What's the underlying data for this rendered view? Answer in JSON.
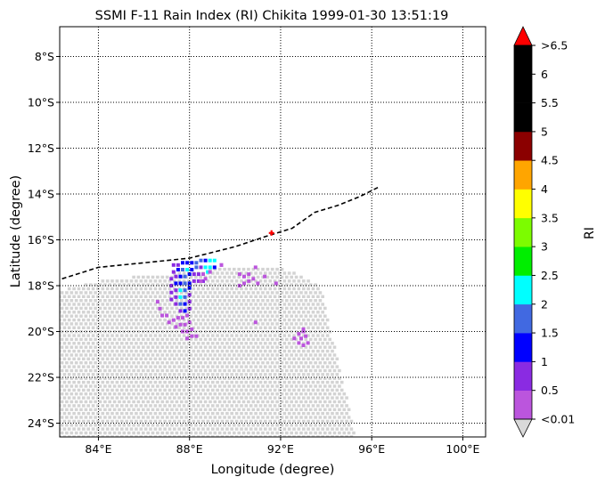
{
  "chart_data": {
    "type": "heatmap",
    "title": "SSMI F-11 Rain Index (RI) Chikita 1999-01-30 13:51:19",
    "xlabel": "Longitude (degree)",
    "ylabel": "Latitude (degree)",
    "xlim": [
      82.3,
      101.0
    ],
    "ylim": [
      -24.6,
      -6.7
    ],
    "x_ticks": [
      {
        "value": 84,
        "label": "84°E"
      },
      {
        "value": 88,
        "label": "88°E"
      },
      {
        "value": 92,
        "label": "92°E"
      },
      {
        "value": 96,
        "label": "96°E"
      },
      {
        "value": 100,
        "label": "100°E"
      }
    ],
    "y_ticks": [
      {
        "value": -8,
        "label": "8°S"
      },
      {
        "value": -10,
        "label": "10°S"
      },
      {
        "value": -12,
        "label": "12°S"
      },
      {
        "value": -14,
        "label": "14°S"
      },
      {
        "value": -16,
        "label": "16°S"
      },
      {
        "value": -18,
        "label": "18°S"
      },
      {
        "value": -20,
        "label": "20°S"
      },
      {
        "value": -22,
        "label": "22°S"
      },
      {
        "value": -24,
        "label": "24°S"
      }
    ],
    "grid": true,
    "grid_style": "dotted",
    "swath": {
      "color": "#d3d3d3",
      "description_points": [
        [
          82.3,
          -18.2
        ],
        [
          84.6,
          -17.7
        ],
        [
          87.0,
          -17.5
        ],
        [
          89.5,
          -17.2
        ],
        [
          92.5,
          -17.3
        ],
        [
          93.4,
          -17.8
        ],
        [
          93.8,
          -18.2
        ],
        [
          95.3,
          -24.6
        ],
        [
          82.3,
          -24.6
        ]
      ]
    },
    "track": {
      "style": "dashed",
      "color": "#000000",
      "points": [
        [
          82.4,
          -17.7
        ],
        [
          84.0,
          -17.2
        ],
        [
          86.0,
          -17.0
        ],
        [
          88.0,
          -16.8
        ],
        [
          90.0,
          -16.3
        ],
        [
          91.5,
          -15.8
        ],
        [
          92.5,
          -15.5
        ],
        [
          93.5,
          -14.8
        ],
        [
          94.5,
          -14.5
        ],
        [
          95.5,
          -14.1
        ],
        [
          96.3,
          -13.7
        ]
      ]
    },
    "storm_center": {
      "lon": 91.6,
      "lat": -15.7,
      "color": "#ff0000"
    },
    "rain_points": [
      {
        "lon": 87.3,
        "lat": -17.1,
        "ri": 0.5
      },
      {
        "lon": 87.5,
        "lat": -17.1,
        "ri": 0.75
      },
      {
        "lon": 87.7,
        "lat": -17.0,
        "ri": 1.25
      },
      {
        "lon": 87.9,
        "lat": -17.0,
        "ri": 1.25
      },
      {
        "lon": 88.1,
        "lat": -17.0,
        "ri": 1.25
      },
      {
        "lon": 88.3,
        "lat": -17.0,
        "ri": 1.75
      },
      {
        "lon": 88.5,
        "lat": -16.9,
        "ri": 1.75
      },
      {
        "lon": 88.7,
        "lat": -16.9,
        "ri": 1.25
      },
      {
        "lon": 88.9,
        "lat": -16.9,
        "ri": 2.25
      },
      {
        "lon": 89.1,
        "lat": -16.9,
        "ri": 2.25
      },
      {
        "lon": 87.3,
        "lat": -17.4,
        "ri": 0.75
      },
      {
        "lon": 87.5,
        "lat": -17.3,
        "ri": 1.25
      },
      {
        "lon": 87.7,
        "lat": -17.3,
        "ri": 1.75
      },
      {
        "lon": 87.9,
        "lat": -17.3,
        "ri": 2.25
      },
      {
        "lon": 88.1,
        "lat": -17.3,
        "ri": 1.25
      },
      {
        "lon": 88.3,
        "lat": -17.2,
        "ri": 1.75
      },
      {
        "lon": 88.5,
        "lat": -17.2,
        "ri": 0.75
      },
      {
        "lon": 88.7,
        "lat": -17.2,
        "ri": 2.25
      },
      {
        "lon": 88.9,
        "lat": -17.2,
        "ri": 2.25
      },
      {
        "lon": 89.1,
        "lat": -17.2,
        "ri": 1.25
      },
      {
        "lon": 89.4,
        "lat": -17.1,
        "ri": 0.25
      },
      {
        "lon": 87.2,
        "lat": -17.7,
        "ri": 0.5
      },
      {
        "lon": 87.4,
        "lat": -17.6,
        "ri": 0.75
      },
      {
        "lon": 87.6,
        "lat": -17.6,
        "ri": 1.25
      },
      {
        "lon": 87.8,
        "lat": -17.6,
        "ri": 1.75
      },
      {
        "lon": 88.0,
        "lat": -17.5,
        "ri": 1.25
      },
      {
        "lon": 88.2,
        "lat": -17.5,
        "ri": 0.75
      },
      {
        "lon": 88.4,
        "lat": -17.5,
        "ri": 0.75
      },
      {
        "lon": 88.6,
        "lat": -17.5,
        "ri": 0.25
      },
      {
        "lon": 88.8,
        "lat": -17.4,
        "ri": 2.25
      },
      {
        "lon": 87.2,
        "lat": -18.0,
        "ri": 0.75
      },
      {
        "lon": 87.4,
        "lat": -17.9,
        "ri": 1.25
      },
      {
        "lon": 87.6,
        "lat": -17.9,
        "ri": 1.25
      },
      {
        "lon": 87.8,
        "lat": -17.9,
        "ri": 1.75
      },
      {
        "lon": 88.0,
        "lat": -17.9,
        "ri": 1.25
      },
      {
        "lon": 88.2,
        "lat": -17.8,
        "ri": 0.75
      },
      {
        "lon": 88.4,
        "lat": -17.8,
        "ri": 0.5
      },
      {
        "lon": 88.6,
        "lat": -17.8,
        "ri": 0.5
      },
      {
        "lon": 87.2,
        "lat": -18.3,
        "ri": 0.5
      },
      {
        "lon": 87.4,
        "lat": -18.2,
        "ri": 0.75
      },
      {
        "lon": 87.6,
        "lat": -18.2,
        "ri": 2.25
      },
      {
        "lon": 87.8,
        "lat": -18.2,
        "ri": 1.75
      },
      {
        "lon": 88.0,
        "lat": -18.1,
        "ri": 1.25
      },
      {
        "lon": 87.2,
        "lat": -18.6,
        "ri": 0.5
      },
      {
        "lon": 87.4,
        "lat": -18.5,
        "ri": 0.75
      },
      {
        "lon": 87.6,
        "lat": -18.5,
        "ri": 2.25
      },
      {
        "lon": 87.8,
        "lat": -18.5,
        "ri": 1.75
      },
      {
        "lon": 88.0,
        "lat": -18.4,
        "ri": 0.75
      },
      {
        "lon": 87.4,
        "lat": -18.8,
        "ri": 0.75
      },
      {
        "lon": 87.6,
        "lat": -18.8,
        "ri": 1.75
      },
      {
        "lon": 87.8,
        "lat": -18.8,
        "ri": 1.25
      },
      {
        "lon": 88.0,
        "lat": -18.7,
        "ri": 0.5
      },
      {
        "lon": 87.6,
        "lat": -19.1,
        "ri": 0.75
      },
      {
        "lon": 87.8,
        "lat": -19.1,
        "ri": 1.25
      },
      {
        "lon": 88.0,
        "lat": -19.0,
        "ri": 0.5
      },
      {
        "lon": 86.6,
        "lat": -18.7,
        "ri": 0.25
      },
      {
        "lon": 86.7,
        "lat": -19.0,
        "ri": 0.25
      },
      {
        "lon": 86.8,
        "lat": -19.3,
        "ri": 0.25
      },
      {
        "lon": 87.0,
        "lat": -19.3,
        "ri": 0.25
      },
      {
        "lon": 87.1,
        "lat": -19.6,
        "ri": 0.25
      },
      {
        "lon": 87.3,
        "lat": -19.5,
        "ri": 0.25
      },
      {
        "lon": 87.5,
        "lat": -19.4,
        "ri": 0.25
      },
      {
        "lon": 87.7,
        "lat": -19.4,
        "ri": 0.25
      },
      {
        "lon": 87.9,
        "lat": -19.3,
        "ri": 0.25
      },
      {
        "lon": 87.4,
        "lat": -19.8,
        "ri": 0.25
      },
      {
        "lon": 87.6,
        "lat": -19.7,
        "ri": 0.25
      },
      {
        "lon": 87.8,
        "lat": -19.7,
        "ri": 0.25
      },
      {
        "lon": 88.0,
        "lat": -19.6,
        "ri": 0.25
      },
      {
        "lon": 87.7,
        "lat": -20.0,
        "ri": 0.25
      },
      {
        "lon": 87.9,
        "lat": -20.0,
        "ri": 0.25
      },
      {
        "lon": 88.1,
        "lat": -19.9,
        "ri": 0.25
      },
      {
        "lon": 87.9,
        "lat": -20.3,
        "ri": 0.25
      },
      {
        "lon": 88.1,
        "lat": -20.2,
        "ri": 0.25
      },
      {
        "lon": 88.3,
        "lat": -20.2,
        "ri": 0.25
      },
      {
        "lon": 88.5,
        "lat": -17.8,
        "ri": 0.25
      },
      {
        "lon": 88.7,
        "lat": -17.7,
        "ri": 0.25
      },
      {
        "lon": 88.9,
        "lat": -17.4,
        "ri": 0.25
      },
      {
        "lon": 89.4,
        "lat": -17.1,
        "ri": 0.25
      },
      {
        "lon": 90.2,
        "lat": -17.5,
        "ri": 0.25
      },
      {
        "lon": 90.4,
        "lat": -17.6,
        "ri": 0.25
      },
      {
        "lon": 90.6,
        "lat": -17.5,
        "ri": 0.25
      },
      {
        "lon": 90.6,
        "lat": -17.8,
        "ri": 0.25
      },
      {
        "lon": 90.8,
        "lat": -17.7,
        "ri": 0.25
      },
      {
        "lon": 91.0,
        "lat": -17.9,
        "ri": 0.25
      },
      {
        "lon": 90.2,
        "lat": -18.0,
        "ri": 0.25
      },
      {
        "lon": 90.4,
        "lat": -17.9,
        "ri": 0.25
      },
      {
        "lon": 90.9,
        "lat": -17.2,
        "ri": 0.25
      },
      {
        "lon": 91.8,
        "lat": -17.9,
        "ri": 0.25
      },
      {
        "lon": 91.3,
        "lat": -17.6,
        "ri": 0.25
      },
      {
        "lon": 90.9,
        "lat": -19.6,
        "ri": 0.25
      },
      {
        "lon": 92.8,
        "lat": -20.1,
        "ri": 0.25
      },
      {
        "lon": 93.0,
        "lat": -20.0,
        "ri": 0.25
      },
      {
        "lon": 92.6,
        "lat": -20.3,
        "ri": 0.25
      },
      {
        "lon": 92.9,
        "lat": -20.3,
        "ri": 0.25
      },
      {
        "lon": 93.1,
        "lat": -20.2,
        "ri": 0.25
      },
      {
        "lon": 93.2,
        "lat": -20.5,
        "ri": 0.25
      },
      {
        "lon": 93.0,
        "lat": -20.6,
        "ri": 0.25
      },
      {
        "lon": 92.8,
        "lat": -20.5,
        "ri": 0.25
      },
      {
        "lon": 93.0,
        "lat": -19.9,
        "ri": 0.25
      }
    ],
    "colorbar": {
      "label": "RI",
      "bins": [
        {
          "label": "<0.01",
          "color": "#bb55dd"
        },
        {
          "label": "0.5",
          "color": "#8a2be2"
        },
        {
          "label": "1",
          "color": "#0000ff"
        },
        {
          "label": "1.5",
          "color": "#4169e1"
        },
        {
          "label": "2",
          "color": "#00ffff"
        },
        {
          "label": "2.5",
          "color": "#00ee00"
        },
        {
          "label": "3",
          "color": "#7cfc00"
        },
        {
          "label": "3.5",
          "color": "#ffff00"
        },
        {
          "label": "4",
          "color": "#ffa500"
        },
        {
          "label": "4.5",
          "color": "#8b0000"
        },
        {
          "label": "5",
          "color": "#000000"
        },
        {
          "label": "5.5",
          "color": "#000000"
        },
        {
          "label": "6",
          "color": "#000000"
        }
      ],
      "top_label": ">6.5",
      "over_color": "#ff0000",
      "under_color": "#d9d9d9",
      "bounds": [
        0.01,
        0.5,
        1,
        1.5,
        2,
        2.5,
        3,
        3.5,
        4,
        4.5,
        5,
        5.5,
        6,
        6.5
      ]
    }
  }
}
